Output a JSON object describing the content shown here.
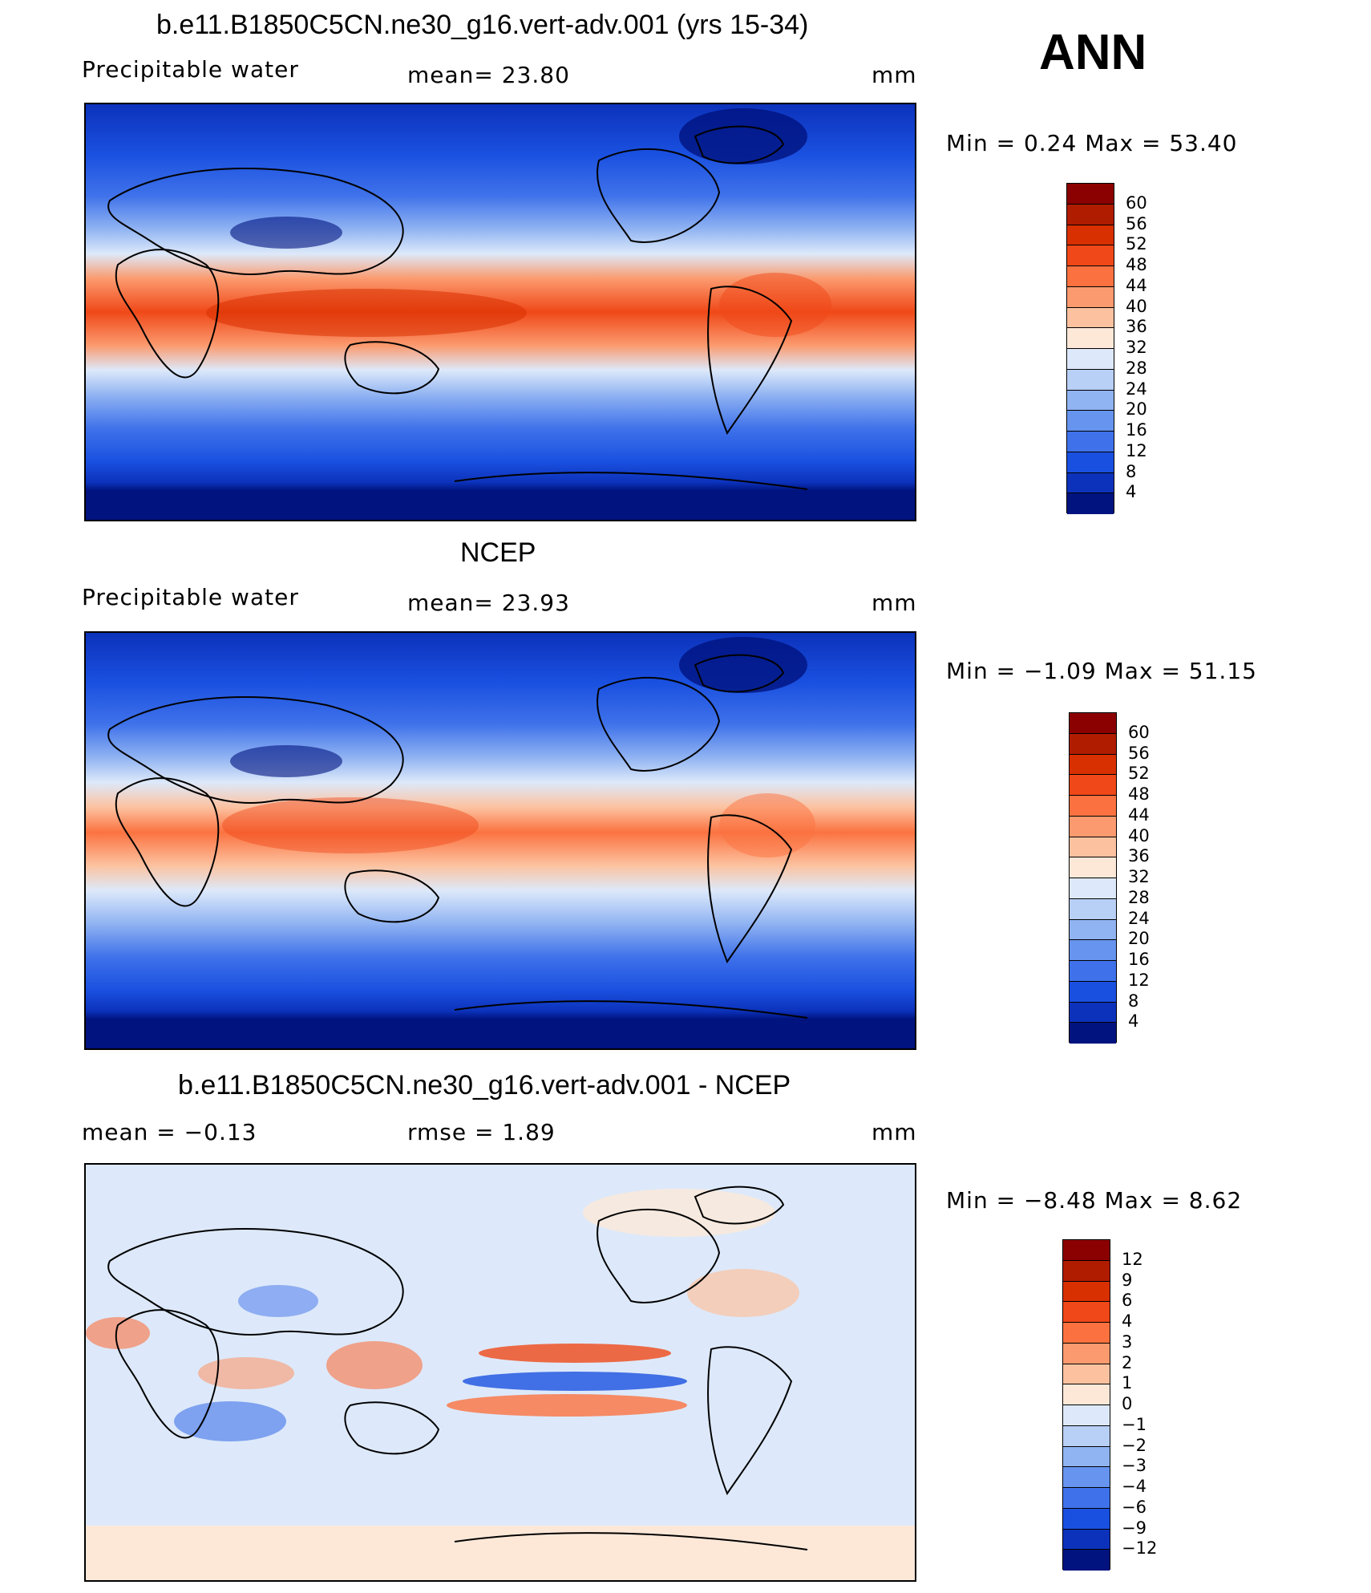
{
  "season": "ANN",
  "panels": [
    {
      "title": "b.e11.B1850C5CN.ne30_g16.vert-adv.001 (yrs 15-34)",
      "left_label": "Precipitable  water",
      "center_label": "mean=   23.80",
      "right_label": "mm",
      "minmax": "Min  =     0.24  Max  =    53.40",
      "colorbar": {
        "labels": [
          "60",
          "56",
          "52",
          "48",
          "44",
          "40",
          "36",
          "32",
          "28",
          "24",
          "20",
          "16",
          "12",
          "8",
          "4"
        ],
        "colors": [
          "#8b0000",
          "#b01c00",
          "#d83000",
          "#f04818",
          "#fb7240",
          "#fb9a6e",
          "#fcc2a0",
          "#fde8d8",
          "#dde9fa",
          "#b8cff6",
          "#90b3f2",
          "#6694ee",
          "#3f72ea",
          "#1a50e0",
          "#0c32bb",
          "#00137f"
        ]
      }
    },
    {
      "title": "NCEP",
      "left_label": "Precipitable  water",
      "center_label": "mean=   23.93",
      "right_label": "mm",
      "minmax": "Min  =   −1.09  Max  =    51.15",
      "colorbar": {
        "labels": [
          "60",
          "56",
          "52",
          "48",
          "44",
          "40",
          "36",
          "32",
          "28",
          "24",
          "20",
          "16",
          "12",
          "8",
          "4"
        ],
        "colors": [
          "#8b0000",
          "#b01c00",
          "#d83000",
          "#f04818",
          "#fb7240",
          "#fb9a6e",
          "#fcc2a0",
          "#fde8d8",
          "#dde9fa",
          "#b8cff6",
          "#90b3f2",
          "#6694ee",
          "#3f72ea",
          "#1a50e0",
          "#0c32bb",
          "#00137f"
        ]
      }
    },
    {
      "title": "b.e11.B1850C5CN.ne30_g16.vert-adv.001 - NCEP",
      "left_label": "mean  =    −0.13",
      "center_label": "rmse  =     1.89",
      "right_label": "mm",
      "minmax": "Min  =   −8.48  Max  =     8.62",
      "colorbar": {
        "labels": [
          "12",
          "9",
          "6",
          "4",
          "3",
          "2",
          "1",
          "0",
          "−1",
          "−2",
          "−3",
          "−4",
          "−6",
          "−9",
          "−12"
        ],
        "colors": [
          "#8b0000",
          "#b01c00",
          "#d83000",
          "#f04818",
          "#fb7240",
          "#fb9a6e",
          "#fcc2a0",
          "#fde8d8",
          "#dde9fa",
          "#b8cff6",
          "#90b3f2",
          "#6694ee",
          "#3f72ea",
          "#1a50e0",
          "#0c32bb",
          "#00137f"
        ]
      }
    }
  ]
}
